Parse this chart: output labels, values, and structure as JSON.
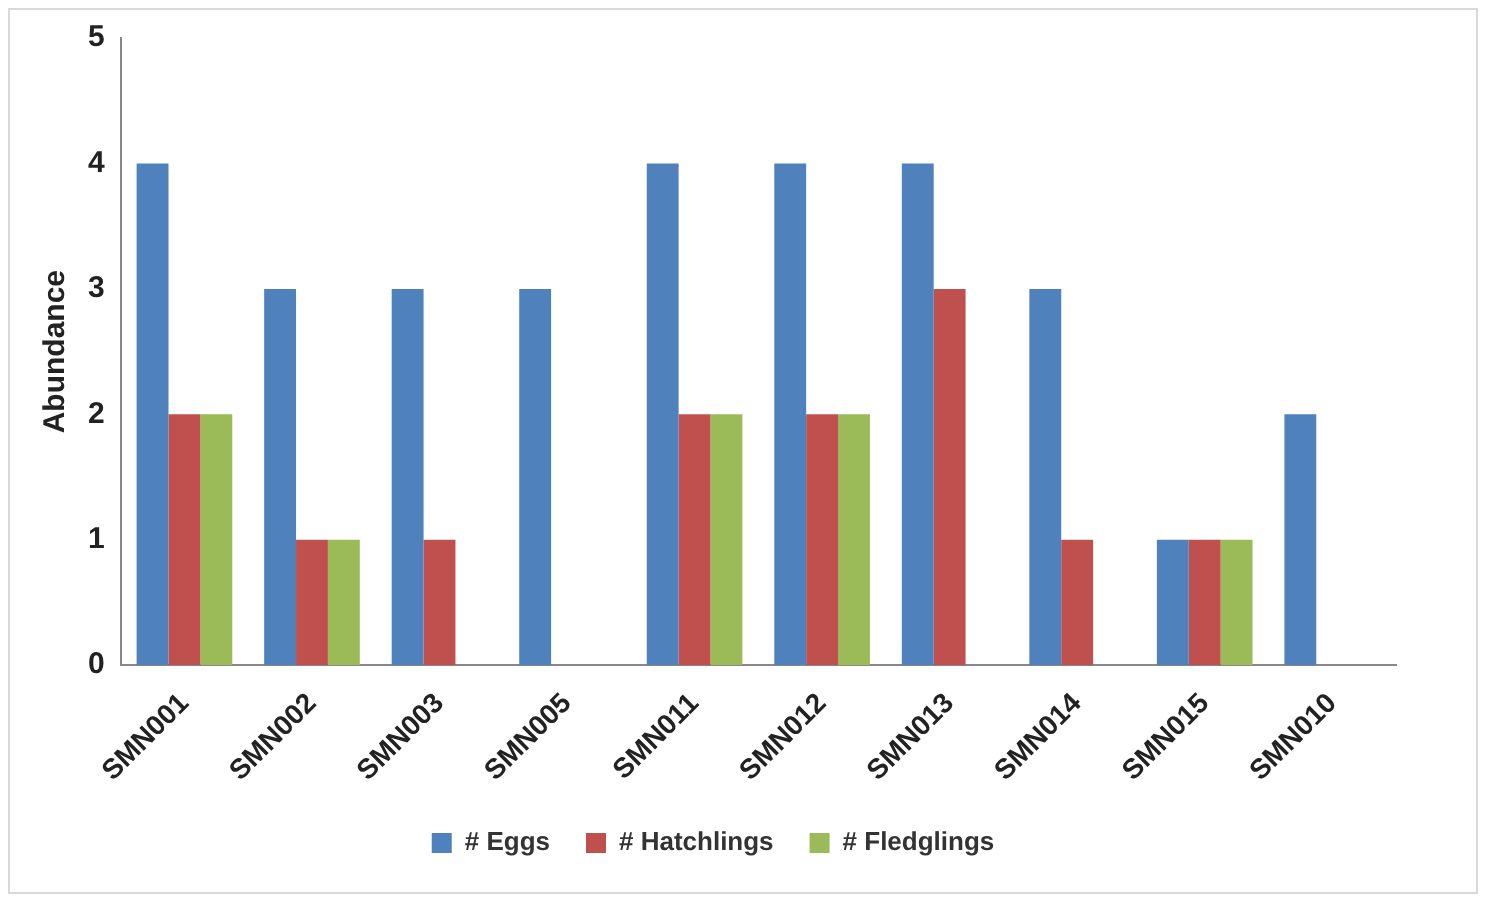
{
  "chart_data": {
    "type": "bar",
    "ylabel": "Abundance",
    "categories": [
      "SMN001",
      "SMN002",
      "SMN003",
      "SMN005",
      "SMN011",
      "SMN012",
      "SMN013",
      "SMN014",
      "SMN015",
      "SMN010"
    ],
    "series": [
      {
        "name": "# Eggs",
        "color": "#4f81bd",
        "values": [
          4,
          3,
          3,
          3,
          4,
          4,
          4,
          3,
          1,
          2
        ]
      },
      {
        "name": "# Hatchlings",
        "color": "#c0504d",
        "values": [
          2,
          1,
          1,
          0,
          2,
          2,
          3,
          1,
          1,
          0
        ]
      },
      {
        "name": "# Fledglings",
        "color": "#9bbb59",
        "values": [
          2,
          1,
          0,
          0,
          2,
          2,
          0,
          0,
          1,
          0
        ]
      }
    ],
    "ylim": [
      0,
      5
    ],
    "yticks": [
      0,
      1,
      2,
      3,
      4,
      5
    ],
    "grid": false,
    "legend": "bottom"
  }
}
